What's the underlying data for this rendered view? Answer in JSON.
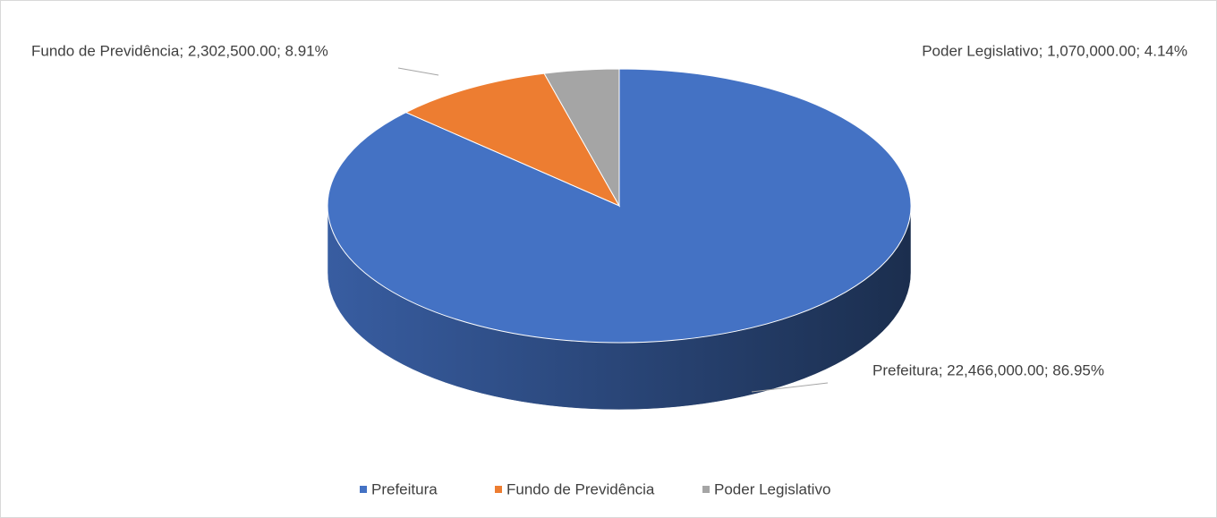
{
  "chart_data": {
    "type": "pie3d",
    "categories": [
      "Prefeitura",
      "Fundo de Previdência",
      "Poder Legislativo"
    ],
    "values": [
      22466000,
      2302500,
      1070000
    ],
    "value_labels": [
      "Prefeitura; 22,466,000.00; 86.95%",
      "Fundo de Previdência; 2,302,500.00; 8.91%",
      "Poder Legislativo; 1,070,000.00; 4.14%"
    ],
    "colors": [
      "#4472c4",
      "#ed7d31",
      "#a5a5a5"
    ],
    "legend": "bottom"
  }
}
